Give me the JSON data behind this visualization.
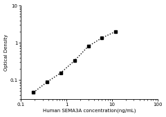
{
  "x_data": [
    0.188,
    0.375,
    0.75,
    1.5,
    3.0,
    6.0,
    12.0
  ],
  "y_data": [
    0.046,
    0.088,
    0.155,
    0.33,
    0.8,
    1.35,
    2.0
  ],
  "xlabel": "Human SEMA3A concentration(ng/mL)",
  "ylabel": "Optical Density",
  "xlim": [
    0.1,
    100
  ],
  "ylim": [
    0.03,
    10
  ],
  "marker": "s",
  "marker_color": "#000000",
  "marker_size": 3.5,
  "line_style": ":",
  "line_color": "#000000",
  "line_width": 1.0,
  "background_color": "#ffffff",
  "axis_fontsize": 5,
  "tick_fontsize": 5,
  "xlabel_fontsize": 5,
  "ylabel_fontsize": 5
}
